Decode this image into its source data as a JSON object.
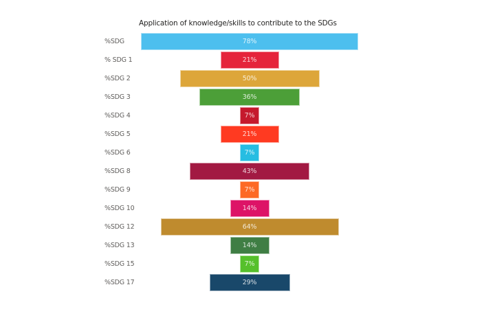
{
  "chart_data": {
    "type": "bar",
    "subtype": "funnel",
    "title": "Application of knowledge/skills to contribute to the SDGs",
    "xlabel": "",
    "ylabel": "",
    "categories": [
      "%SDG",
      "% SDG 1",
      "%SDG 2",
      "%SDG 3",
      "%SDG 4",
      "%SDG 5",
      "%SDG 6",
      "%SDG 8",
      "%SDG 9",
      "%SDG 10",
      "%SDG 12",
      "%SDG 13",
      "%SDG 15",
      "%SDG 17"
    ],
    "values": [
      78,
      21,
      50,
      36,
      7,
      21,
      7,
      43,
      7,
      14,
      64,
      14,
      7,
      29
    ],
    "value_labels": [
      "78%",
      "21%",
      "50%",
      "36%",
      "7%",
      "21%",
      "7%",
      "43%",
      "7%",
      "14%",
      "64%",
      "14%",
      "7%",
      "29%"
    ],
    "colors": [
      "#4DBFEE",
      "#E5243B",
      "#DDA63A",
      "#4C9F38",
      "#C5192D",
      "#FF3A21",
      "#26BDE2",
      "#A21942",
      "#FD6925",
      "#DD1367",
      "#BF8B2E",
      "#3F7E44",
      "#56C02B",
      "#19486A"
    ],
    "unit": "%",
    "grid": false,
    "legend": "none"
  },
  "title": "Application of knowledge/skills to contribute to the SDGs",
  "rows": [
    {
      "label": "%SDG",
      "value": "78%"
    },
    {
      "label": "% SDG 1",
      "value": "21%"
    },
    {
      "label": "%SDG 2",
      "value": "50%"
    },
    {
      "label": "%SDG 3",
      "value": "36%"
    },
    {
      "label": "%SDG 4",
      "value": "7%"
    },
    {
      "label": "%SDG 5",
      "value": "21%"
    },
    {
      "label": "%SDG 6",
      "value": "7%"
    },
    {
      "label": "%SDG 8",
      "value": "43%"
    },
    {
      "label": "%SDG 9",
      "value": "7%"
    },
    {
      "label": "%SDG 10",
      "value": "14%"
    },
    {
      "label": "%SDG 12",
      "value": "64%"
    },
    {
      "label": "%SDG 13",
      "value": "14%"
    },
    {
      "label": "%SDG 15",
      "value": "7%"
    },
    {
      "label": "%SDG 17",
      "value": "29%"
    }
  ]
}
